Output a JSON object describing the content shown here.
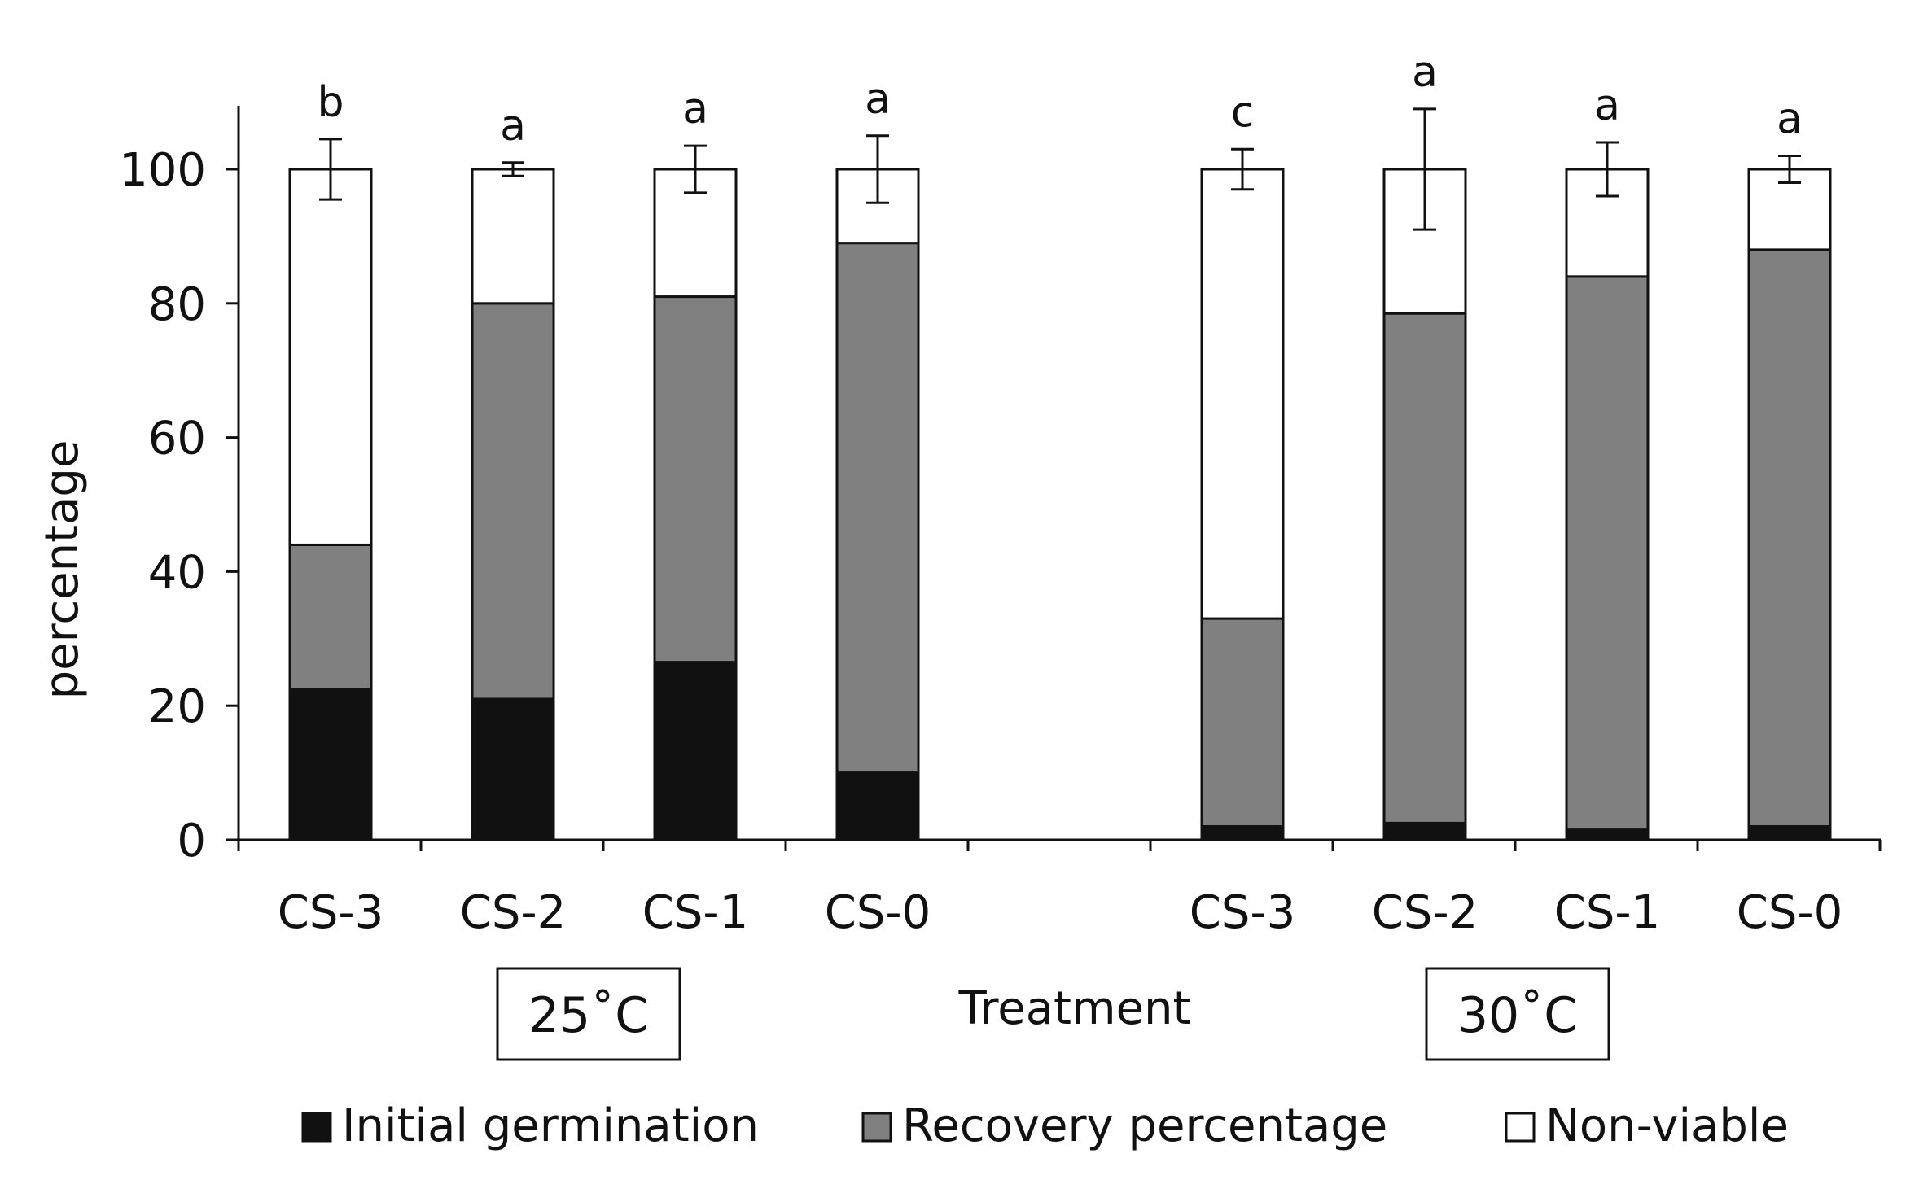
{
  "chart_data": {
    "type": "bar",
    "stacked": true,
    "ylabel": "percentage",
    "xlabel": "Treatment",
    "ylim": [
      0,
      110
    ],
    "yticks": [
      0,
      20,
      40,
      60,
      80,
      100
    ],
    "grid": false,
    "legend_position": "bottom",
    "groups": [
      {
        "label": "25˚C",
        "categories": [
          "CS-3",
          "CS-2",
          "CS-1",
          "CS-0"
        ],
        "significance": [
          "b",
          "a",
          "a",
          "a"
        ],
        "error": [
          4.5,
          1,
          3.5,
          5
        ]
      },
      {
        "label": "30˚C",
        "categories": [
          "CS-3",
          "CS-2",
          "CS-1",
          "CS-0"
        ],
        "significance": [
          "c",
          "a",
          "a",
          "a"
        ],
        "error": [
          3,
          9,
          4,
          2
        ]
      }
    ],
    "series": [
      {
        "name": "Initial germination",
        "color": "#111111",
        "values": [
          22.5,
          21,
          26.5,
          10,
          2,
          2.5,
          1.5,
          2
        ]
      },
      {
        "name": "Recovery percentage",
        "color": "#808080",
        "values": [
          21.5,
          59,
          54.5,
          79,
          31,
          76,
          82.5,
          86
        ]
      },
      {
        "name": "Non-viable",
        "color": "#ffffff",
        "values": [
          56,
          20,
          19,
          11,
          67,
          21.5,
          16,
          12
        ]
      }
    ]
  }
}
